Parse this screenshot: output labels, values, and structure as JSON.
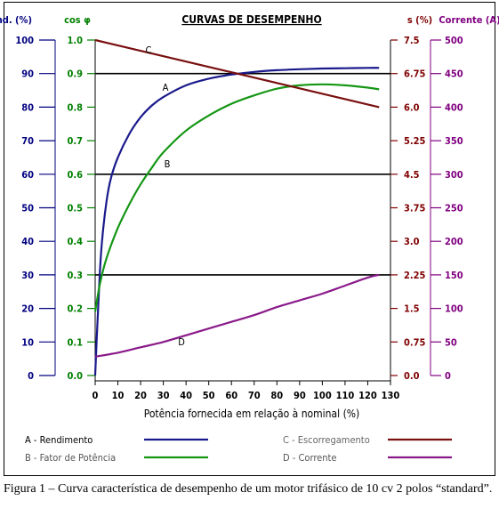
{
  "chart_data": {
    "type": "line",
    "title": "CURVAS DE DESEMPENHO",
    "xlabel": "Potência fornecida em relação à nominal (%)",
    "x_ticks": [
      "0",
      "10",
      "20",
      "30",
      "40",
      "50",
      "60",
      "70",
      "80",
      "90",
      "100",
      "110",
      "120",
      "130"
    ],
    "xlim": [
      0,
      130
    ],
    "axes": [
      {
        "id": "rend",
        "label": "Rend. (%)",
        "color": "#000080",
        "side": "left",
        "range": [
          0,
          100
        ],
        "reversed": false,
        "ticks": [
          "0",
          "10",
          "20",
          "30",
          "40",
          "50",
          "60",
          "70",
          "80",
          "90",
          "100"
        ]
      },
      {
        "id": "cos",
        "label": "cos φ",
        "color": "#008000",
        "side": "left",
        "range": [
          0,
          1
        ],
        "reversed": false,
        "ticks": [
          "0.0",
          "0.1",
          "0.2",
          "0.3",
          "0.4",
          "0.5",
          "0.6",
          "0.7",
          "0.8",
          "0.9",
          "1.0"
        ]
      },
      {
        "id": "s",
        "label": "s (%)",
        "color": "#800000",
        "side": "right",
        "range": [
          0,
          7.5
        ],
        "reversed": true,
        "ticks": [
          "0.0",
          "0.75",
          "1.5",
          "2.25",
          "3.0",
          "3.75",
          "4.5",
          "5.25",
          "6.0",
          "6.75",
          "7.5"
        ]
      },
      {
        "id": "corr",
        "label": "Corrente (A)",
        "color": "#800080",
        "side": "right",
        "range": [
          0,
          500
        ],
        "reversed": false,
        "ticks": [
          "0",
          "50",
          "100",
          "150",
          "200",
          "250",
          "300",
          "350",
          "400",
          "450",
          "500"
        ]
      }
    ],
    "series": [
      {
        "letter": "A",
        "name": "Rendimento",
        "axis": "rend",
        "color": "#1a1a8c",
        "x": [
          0,
          1,
          2,
          3,
          5,
          7,
          10,
          15,
          20,
          25,
          30,
          40,
          50,
          60,
          70,
          80,
          90,
          100,
          110,
          120,
          125
        ],
        "y": [
          0,
          16,
          30,
          40,
          52,
          59,
          65,
          72,
          77,
          80.5,
          83,
          86.5,
          88.5,
          89.7,
          90.5,
          91,
          91.3,
          91.5,
          91.6,
          91.7,
          91.7
        ]
      },
      {
        "letter": "B",
        "name": "Fator de Potência",
        "axis": "cos",
        "color": "#149614",
        "x": [
          0,
          2,
          5,
          10,
          15,
          20,
          25,
          30,
          40,
          50,
          60,
          70,
          80,
          90,
          100,
          110,
          120,
          125
        ],
        "y": [
          0.19,
          0.27,
          0.35,
          0.44,
          0.51,
          0.57,
          0.62,
          0.665,
          0.73,
          0.775,
          0.81,
          0.835,
          0.855,
          0.865,
          0.868,
          0.865,
          0.858,
          0.853
        ]
      },
      {
        "letter": "C",
        "name": "Escorregamento",
        "axis": "s",
        "color": "#7a1010",
        "x": [
          0,
          125
        ],
        "y": [
          0,
          1.5
        ]
      },
      {
        "letter": "D",
        "name": "Corrente",
        "axis": "corr",
        "color": "#8a1a8a",
        "x": [
          0,
          10,
          20,
          30,
          40,
          50,
          60,
          70,
          80,
          90,
          100,
          110,
          120,
          125
        ],
        "y": [
          28,
          34,
          42,
          50,
          60,
          70,
          80,
          90,
          102,
          112,
          122,
          134,
          146,
          150
        ]
      }
    ],
    "grid_lines_y": [
      30,
      60,
      90
    ],
    "curve_labels": [
      "A",
      "B",
      "C",
      "D"
    ]
  },
  "legend": [
    {
      "text": "A - Rendimento",
      "color": "#1a1a8c"
    },
    {
      "text": "B - Fator de Potência",
      "color": "#149614"
    },
    {
      "text": "C - Escorregamento",
      "color": "#7a1010"
    },
    {
      "text": "D - Corrente",
      "color": "#8a1a8a"
    }
  ],
  "caption": "Figura 1 – Curva característica de desempenho de um motor trifásico de 10 cv 2 polos “standard”."
}
